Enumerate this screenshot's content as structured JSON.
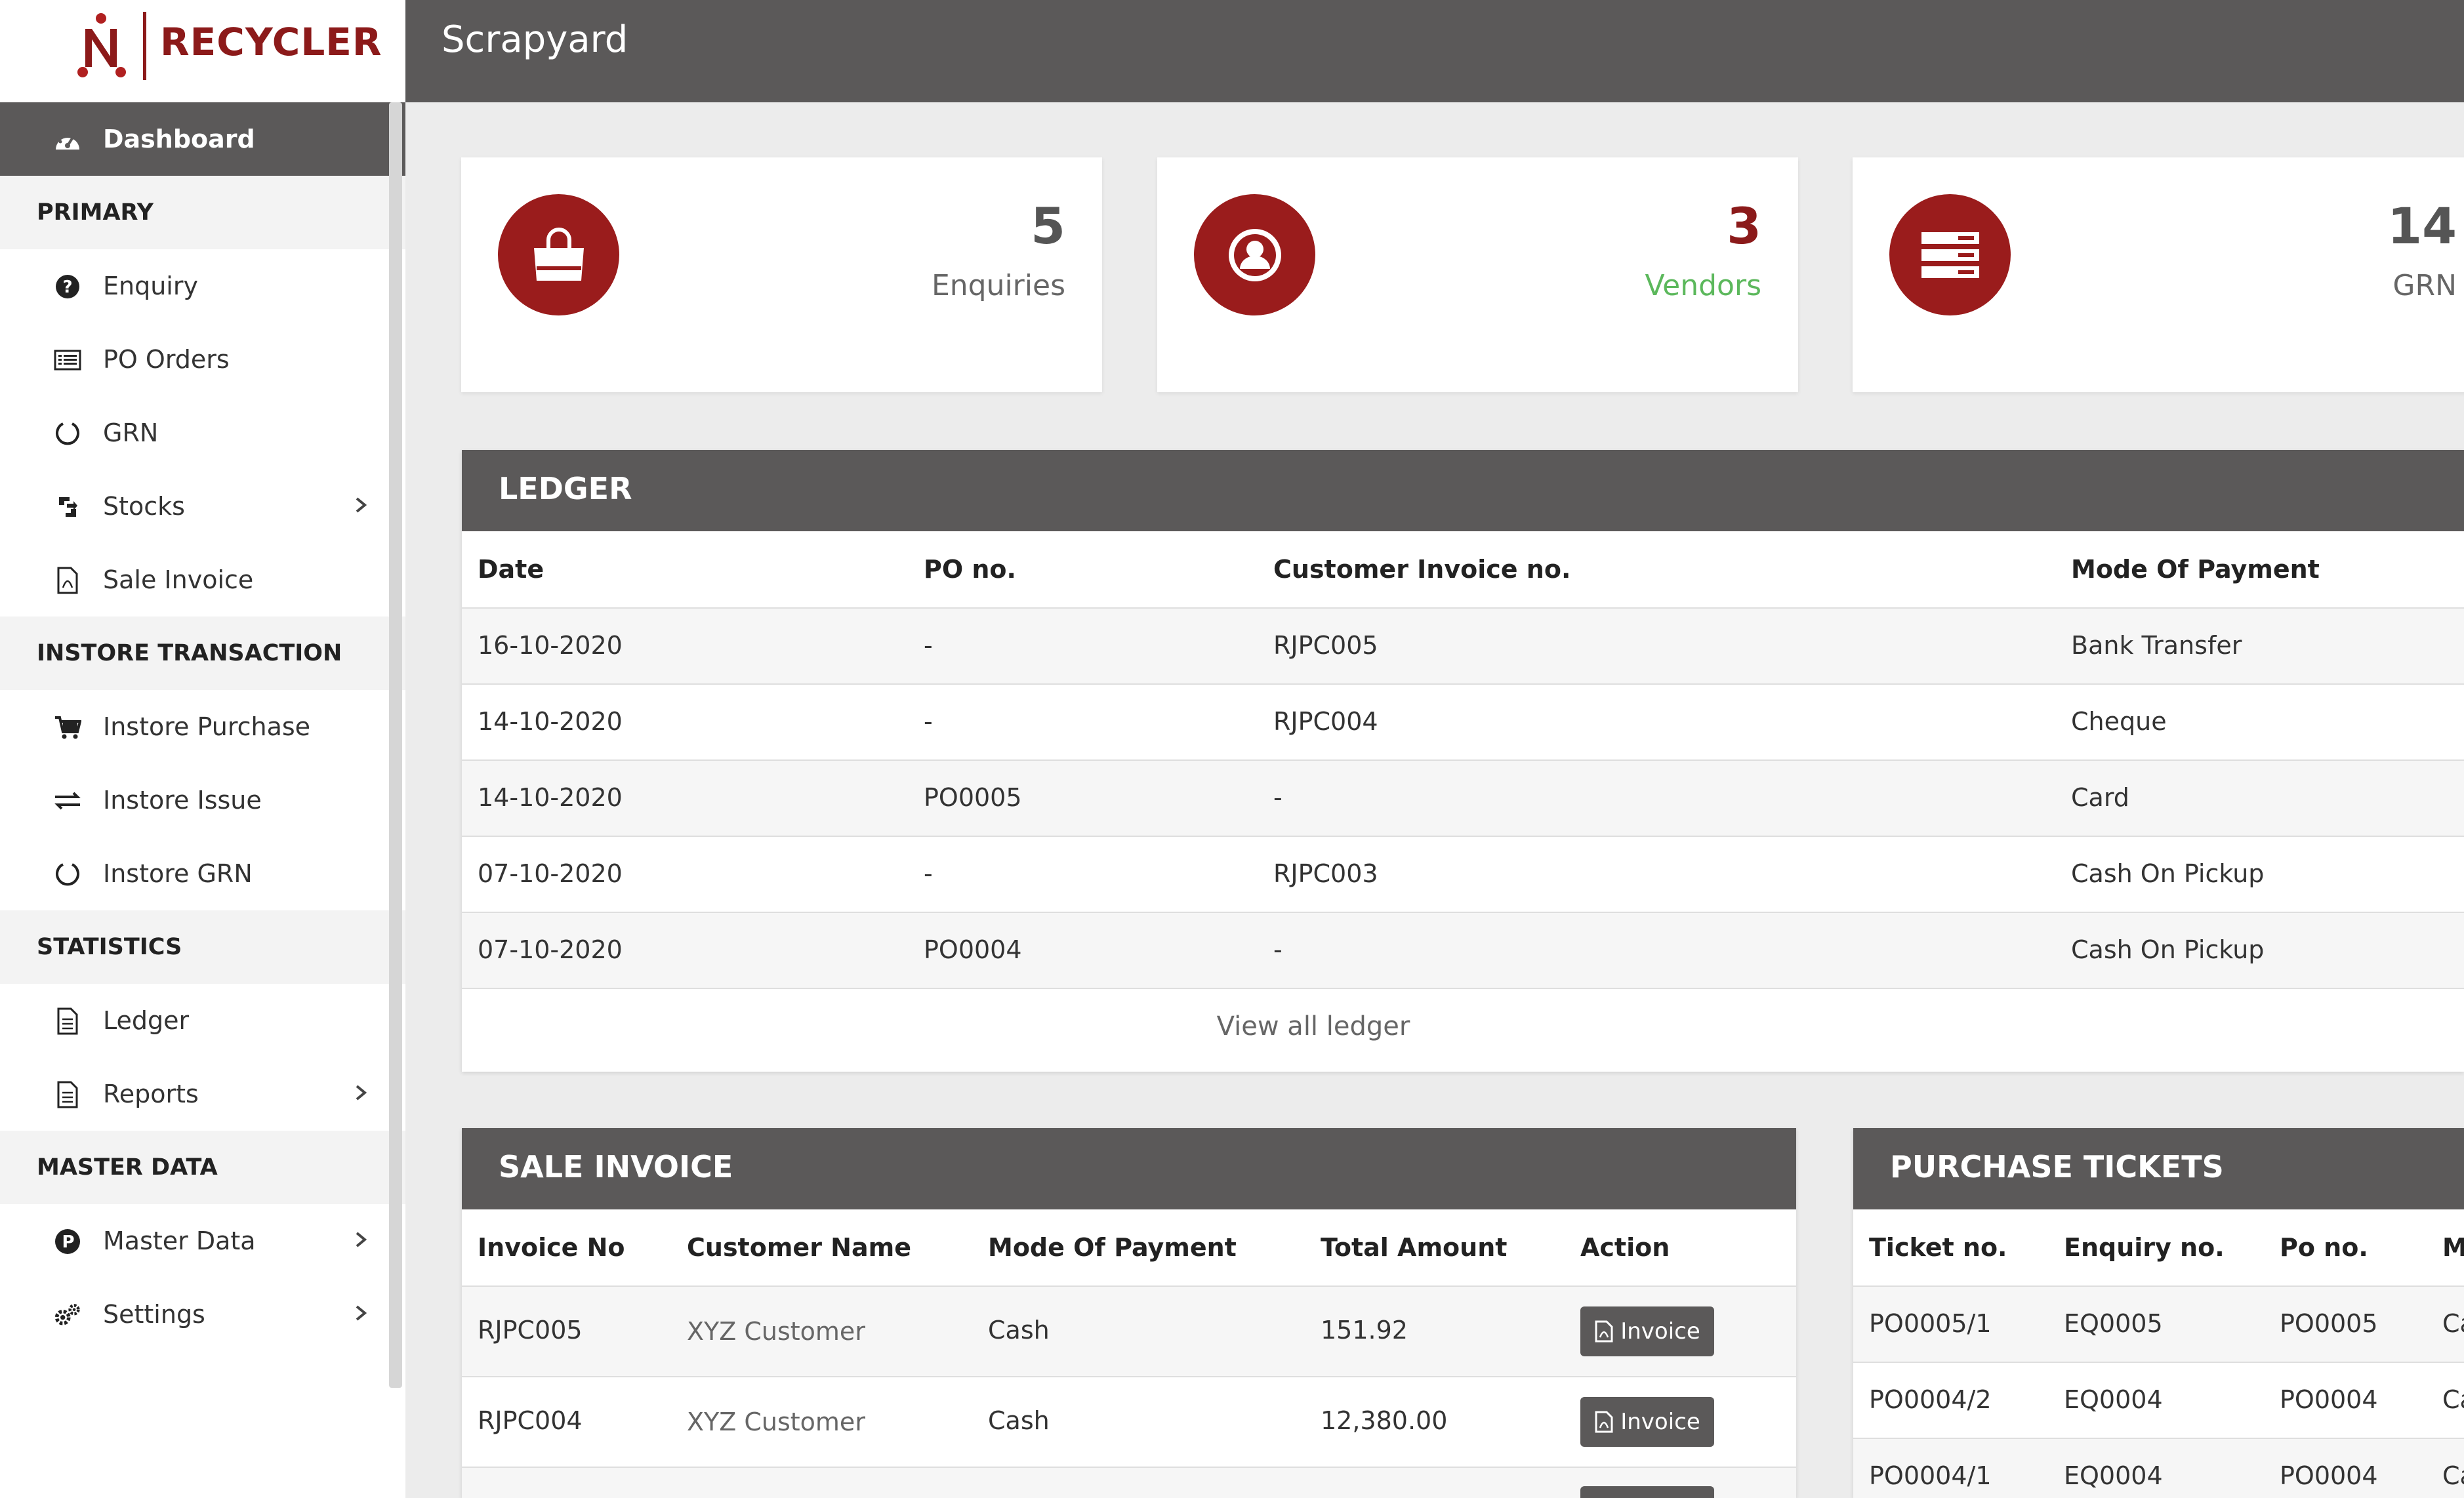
{
  "brand": {
    "name": "RECYCLER",
    "accent": "#9a1c1c"
  },
  "header": {
    "title": "Scrapyard"
  },
  "sidebar": {
    "dashboard": "Dashboard",
    "sections": [
      {
        "heading": "PRIMARY",
        "items": [
          "Enquiry",
          "PO Orders",
          "GRN",
          "Stocks",
          "Sale Invoice"
        ]
      },
      {
        "heading": "INSTORE TRANSACTION",
        "items": [
          "Instore Purchase",
          "Instore Issue",
          "Instore GRN"
        ]
      },
      {
        "heading": "STATISTICS",
        "items": [
          "Ledger",
          "Reports"
        ]
      },
      {
        "heading": "MASTER DATA",
        "items": [
          "Master Data",
          "Settings"
        ]
      }
    ]
  },
  "stats": [
    {
      "value": "5",
      "label": "Enquiries",
      "icon": "shopping-bag-icon",
      "value_color": "#555555",
      "label_color": "#666666"
    },
    {
      "value": "3",
      "label": "Vendors",
      "icon": "user-circle-icon",
      "value_color": "#8b1a1a",
      "label_color": "#5cb85c"
    },
    {
      "value": "14",
      "label": "GRN",
      "icon": "server-icon",
      "value_color": "#555555",
      "label_color": "#666666"
    }
  ],
  "ledger": {
    "title": "LEDGER",
    "columns": [
      "Date",
      "PO no.",
      "Customer Invoice no.",
      "Mode Of Payment"
    ],
    "rows": [
      [
        "16-10-2020",
        "-",
        "RJPC005",
        "Bank Transfer"
      ],
      [
        "14-10-2020",
        "-",
        "RJPC004",
        "Cheque"
      ],
      [
        "14-10-2020",
        "PO0005",
        "-",
        "Card"
      ],
      [
        "07-10-2020",
        "-",
        "RJPC003",
        "Cash On Pickup"
      ],
      [
        "07-10-2020",
        "PO0004",
        "-",
        "Cash On Pickup"
      ]
    ],
    "view_all": "View all ledger"
  },
  "sale_invoice": {
    "title": "SALE INVOICE",
    "columns": [
      "Invoice No",
      "Customer Name",
      "Mode Of Payment",
      "Total Amount",
      "Action"
    ],
    "rows": [
      [
        "RJPC005",
        "XYZ Customer",
        "Cash",
        "151.92",
        "Invoice"
      ],
      [
        "RJPC004",
        "XYZ Customer",
        "Cash",
        "12,380.00",
        "Invoice"
      ]
    ]
  },
  "purchase_tickets": {
    "title": "PURCHASE TICKETS",
    "columns": [
      "Ticket no.",
      "Enquiry no.",
      "Po no.",
      "M"
    ],
    "rows": [
      [
        "PO0005/1",
        "EQ0005",
        "PO0005",
        "Ca"
      ],
      [
        "PO0004/2",
        "EQ0004",
        "PO0004",
        "Ca"
      ],
      [
        "PO0004/1",
        "EQ0004",
        "PO0004",
        "Ca"
      ]
    ]
  }
}
